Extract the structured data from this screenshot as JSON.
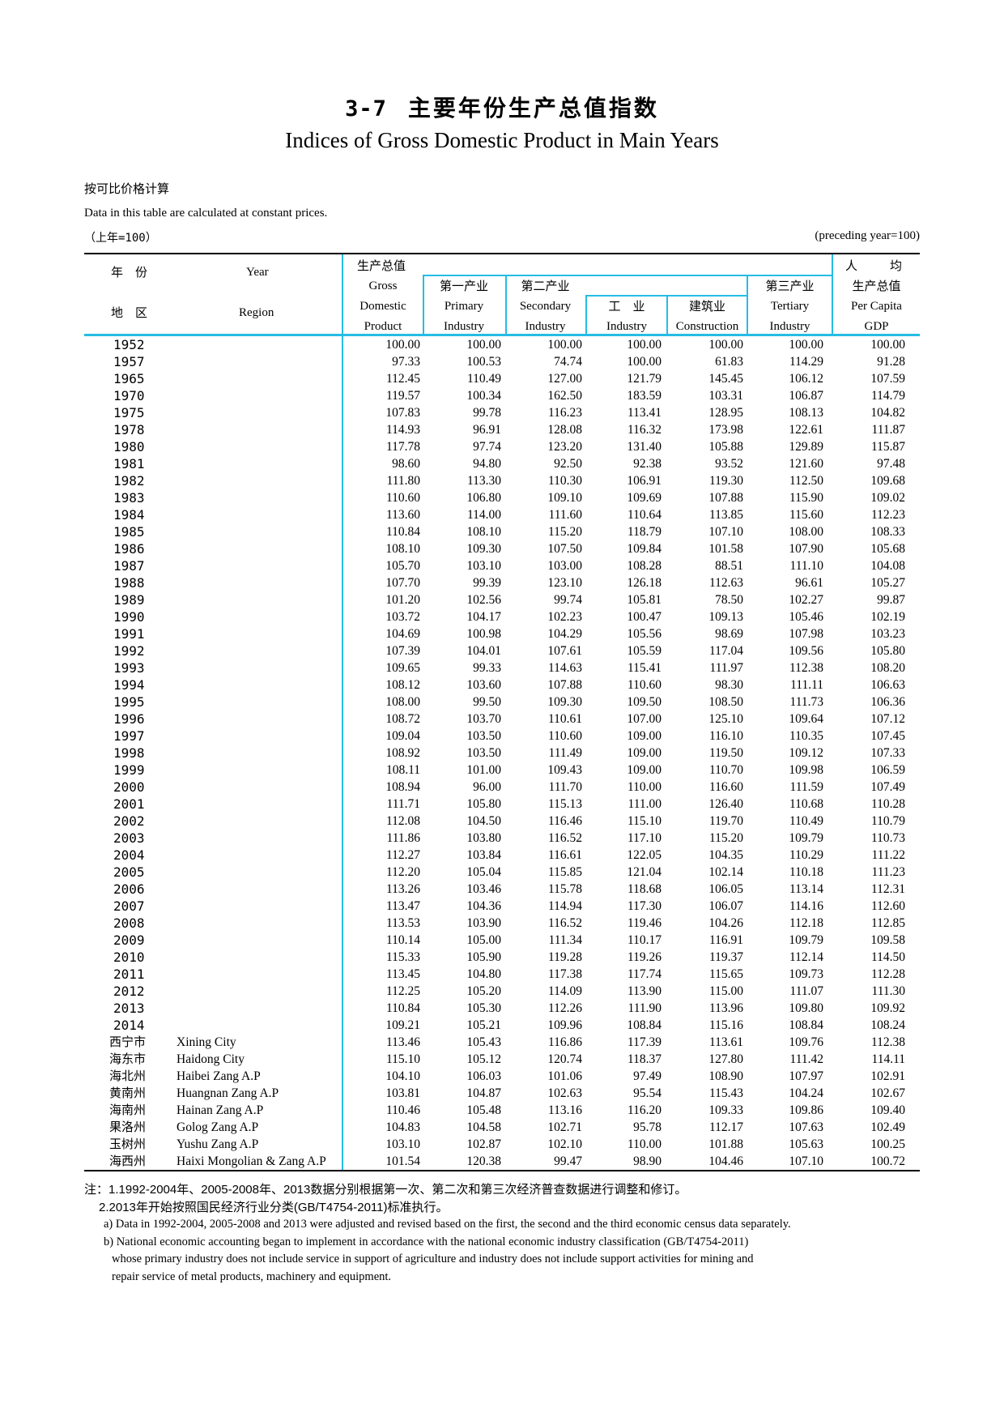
{
  "colors": {
    "accent_cyan": "#25bde4",
    "text": "#000000",
    "background": "#ffffff"
  },
  "page": {
    "title_no": "3-7",
    "title_zh": "主要年份生产总值指数",
    "title_en": "Indices of Gross Domestic Product in Main Years",
    "subtitle_zh": "按可比价格计算",
    "subtitle_en": "Data in this table are calculated at constant prices.",
    "base_left": "（上年=100）",
    "base_right": "(preceding year=100)"
  },
  "table": {
    "header": {
      "year_zh": "年　份",
      "year_en": "Year",
      "region_zh": "地　区",
      "region_en": "Region",
      "gdp_zh": "生产总值",
      "gdp_en1": "Gross",
      "gdp_en2": "Domestic",
      "gdp_en3": "Product",
      "primary_zh": "第一产业",
      "primary_en1": "Primary",
      "primary_en2": "Industry",
      "secondary_zh": "第二产业",
      "secondary_en1": "Secondary",
      "secondary_en2": "Industry",
      "industry_zh": "工　业",
      "industry_en": "Industry",
      "construction_zh": "建筑业",
      "construction_en": "Construction",
      "tertiary_zh": "第三产业",
      "tertiary_en1": "Tertiary",
      "tertiary_en2": "Industry",
      "percapita_zh_a": "人",
      "percapita_zh_b": "均",
      "percapita_zh2": "生产总值",
      "percapita_en1": "Per Capita",
      "percapita_en2": "GDP"
    },
    "rows": [
      {
        "y": "1952",
        "rz": "",
        "re": "",
        "v": [
          "100.00",
          "100.00",
          "100.00",
          "100.00",
          "100.00",
          "100.00",
          "100.00"
        ]
      },
      {
        "y": "1957",
        "rz": "",
        "re": "",
        "v": [
          "97.33",
          "100.53",
          "74.74",
          "100.00",
          "61.83",
          "114.29",
          "91.28"
        ]
      },
      {
        "y": "1965",
        "rz": "",
        "re": "",
        "v": [
          "112.45",
          "110.49",
          "127.00",
          "121.79",
          "145.45",
          "106.12",
          "107.59"
        ]
      },
      {
        "y": "1970",
        "rz": "",
        "re": "",
        "v": [
          "119.57",
          "100.34",
          "162.50",
          "183.59",
          "103.31",
          "106.87",
          "114.79"
        ]
      },
      {
        "y": "1975",
        "rz": "",
        "re": "",
        "v": [
          "107.83",
          "99.78",
          "116.23",
          "113.41",
          "128.95",
          "108.13",
          "104.82"
        ]
      },
      {
        "y": "1978",
        "rz": "",
        "re": "",
        "v": [
          "114.93",
          "96.91",
          "128.08",
          "116.32",
          "173.98",
          "122.61",
          "111.87"
        ]
      },
      {
        "y": "1980",
        "rz": "",
        "re": "",
        "v": [
          "117.78",
          "97.74",
          "123.20",
          "131.40",
          "105.88",
          "129.89",
          "115.87"
        ]
      },
      {
        "y": "1981",
        "rz": "",
        "re": "",
        "v": [
          "98.60",
          "94.80",
          "92.50",
          "92.38",
          "93.52",
          "121.60",
          "97.48"
        ]
      },
      {
        "y": "1982",
        "rz": "",
        "re": "",
        "v": [
          "111.80",
          "113.30",
          "110.30",
          "106.91",
          "119.30",
          "112.50",
          "109.68"
        ]
      },
      {
        "y": "1983",
        "rz": "",
        "re": "",
        "v": [
          "110.60",
          "106.80",
          "109.10",
          "109.69",
          "107.88",
          "115.90",
          "109.02"
        ]
      },
      {
        "y": "1984",
        "rz": "",
        "re": "",
        "v": [
          "113.60",
          "114.00",
          "111.60",
          "110.64",
          "113.85",
          "115.60",
          "112.23"
        ]
      },
      {
        "y": "1985",
        "rz": "",
        "re": "",
        "v": [
          "110.84",
          "108.10",
          "115.20",
          "118.79",
          "107.10",
          "108.00",
          "108.33"
        ]
      },
      {
        "y": "1986",
        "rz": "",
        "re": "",
        "v": [
          "108.10",
          "109.30",
          "107.50",
          "109.84",
          "101.58",
          "107.90",
          "105.68"
        ]
      },
      {
        "y": "1987",
        "rz": "",
        "re": "",
        "v": [
          "105.70",
          "103.10",
          "103.00",
          "108.28",
          "88.51",
          "111.10",
          "104.08"
        ]
      },
      {
        "y": "1988",
        "rz": "",
        "re": "",
        "v": [
          "107.70",
          "99.39",
          "123.10",
          "126.18",
          "112.63",
          "96.61",
          "105.27"
        ]
      },
      {
        "y": "1989",
        "rz": "",
        "re": "",
        "v": [
          "101.20",
          "102.56",
          "99.74",
          "105.81",
          "78.50",
          "102.27",
          "99.87"
        ]
      },
      {
        "y": "1990",
        "rz": "",
        "re": "",
        "v": [
          "103.72",
          "104.17",
          "102.23",
          "100.47",
          "109.13",
          "105.46",
          "102.19"
        ]
      },
      {
        "y": "1991",
        "rz": "",
        "re": "",
        "v": [
          "104.69",
          "100.98",
          "104.29",
          "105.56",
          "98.69",
          "107.98",
          "103.23"
        ]
      },
      {
        "y": "1992",
        "rz": "",
        "re": "",
        "v": [
          "107.39",
          "104.01",
          "107.61",
          "105.59",
          "117.04",
          "109.56",
          "105.80"
        ]
      },
      {
        "y": "1993",
        "rz": "",
        "re": "",
        "v": [
          "109.65",
          "99.33",
          "114.63",
          "115.41",
          "111.97",
          "112.38",
          "108.20"
        ]
      },
      {
        "y": "1994",
        "rz": "",
        "re": "",
        "v": [
          "108.12",
          "103.60",
          "107.88",
          "110.60",
          "98.30",
          "111.11",
          "106.63"
        ]
      },
      {
        "y": "1995",
        "rz": "",
        "re": "",
        "v": [
          "108.00",
          "99.50",
          "109.30",
          "109.50",
          "108.50",
          "111.73",
          "106.36"
        ]
      },
      {
        "y": "1996",
        "rz": "",
        "re": "",
        "v": [
          "108.72",
          "103.70",
          "110.61",
          "107.00",
          "125.10",
          "109.64",
          "107.12"
        ]
      },
      {
        "y": "1997",
        "rz": "",
        "re": "",
        "v": [
          "109.04",
          "103.50",
          "110.60",
          "109.00",
          "116.10",
          "110.35",
          "107.45"
        ]
      },
      {
        "y": "1998",
        "rz": "",
        "re": "",
        "v": [
          "108.92",
          "103.50",
          "111.49",
          "109.00",
          "119.50",
          "109.12",
          "107.33"
        ]
      },
      {
        "y": "1999",
        "rz": "",
        "re": "",
        "v": [
          "108.11",
          "101.00",
          "109.43",
          "109.00",
          "110.70",
          "109.98",
          "106.59"
        ]
      },
      {
        "y": "2000",
        "rz": "",
        "re": "",
        "v": [
          "108.94",
          "96.00",
          "111.70",
          "110.00",
          "116.60",
          "111.59",
          "107.49"
        ]
      },
      {
        "y": "2001",
        "rz": "",
        "re": "",
        "v": [
          "111.71",
          "105.80",
          "115.13",
          "111.00",
          "126.40",
          "110.68",
          "110.28"
        ]
      },
      {
        "y": "2002",
        "rz": "",
        "re": "",
        "v": [
          "112.08",
          "104.50",
          "116.46",
          "115.10",
          "119.70",
          "110.49",
          "110.79"
        ]
      },
      {
        "y": "2003",
        "rz": "",
        "re": "",
        "v": [
          "111.86",
          "103.80",
          "116.52",
          "117.10",
          "115.20",
          "109.79",
          "110.73"
        ]
      },
      {
        "y": "2004",
        "rz": "",
        "re": "",
        "v": [
          "112.27",
          "103.84",
          "116.61",
          "122.05",
          "104.35",
          "110.29",
          "111.22"
        ]
      },
      {
        "y": "2005",
        "rz": "",
        "re": "",
        "v": [
          "112.20",
          "105.04",
          "115.85",
          "121.04",
          "102.14",
          "110.18",
          "111.23"
        ]
      },
      {
        "y": "2006",
        "rz": "",
        "re": "",
        "v": [
          "113.26",
          "103.46",
          "115.78",
          "118.68",
          "106.05",
          "113.14",
          "112.31"
        ]
      },
      {
        "y": "2007",
        "rz": "",
        "re": "",
        "v": [
          "113.47",
          "104.36",
          "114.94",
          "117.30",
          "106.07",
          "114.16",
          "112.60"
        ]
      },
      {
        "y": "2008",
        "rz": "",
        "re": "",
        "v": [
          "113.53",
          "103.90",
          "116.52",
          "119.46",
          "104.26",
          "112.18",
          "112.85"
        ]
      },
      {
        "y": "2009",
        "rz": "",
        "re": "",
        "v": [
          "110.14",
          "105.00",
          "111.34",
          "110.17",
          "116.91",
          "109.79",
          "109.58"
        ]
      },
      {
        "y": "2010",
        "rz": "",
        "re": "",
        "v": [
          "115.33",
          "105.90",
          "119.28",
          "119.26",
          "119.37",
          "112.14",
          "114.50"
        ]
      },
      {
        "y": "2011",
        "rz": "",
        "re": "",
        "v": [
          "113.45",
          "104.80",
          "117.38",
          "117.74",
          "115.65",
          "109.73",
          "112.28"
        ]
      },
      {
        "y": "2012",
        "rz": "",
        "re": "",
        "v": [
          "112.25",
          "105.20",
          "114.09",
          "113.90",
          "115.00",
          "111.07",
          "111.30"
        ]
      },
      {
        "y": "2013",
        "rz": "",
        "re": "",
        "v": [
          "110.84",
          "105.30",
          "112.26",
          "111.90",
          "113.96",
          "109.80",
          "109.92"
        ]
      },
      {
        "y": "2014",
        "rz": "",
        "re": "",
        "v": [
          "109.21",
          "105.21",
          "109.96",
          "108.84",
          "115.16",
          "108.84",
          "108.24"
        ]
      },
      {
        "y": "",
        "rz": "西宁市",
        "re": "Xining City",
        "v": [
          "113.46",
          "105.43",
          "116.86",
          "117.39",
          "113.61",
          "109.76",
          "112.38"
        ]
      },
      {
        "y": "",
        "rz": "海东市",
        "re": "Haidong  City",
        "v": [
          "115.10",
          "105.12",
          "120.74",
          "118.37",
          "127.80",
          "111.42",
          "114.11"
        ]
      },
      {
        "y": "",
        "rz": "海北州",
        "re": "Haibei Zang A.P",
        "v": [
          "104.10",
          "106.03",
          "101.06",
          "97.49",
          "108.90",
          "107.97",
          "102.91"
        ]
      },
      {
        "y": "",
        "rz": "黄南州",
        "re": "Huangnan Zang A.P",
        "v": [
          "103.81",
          "104.87",
          "102.63",
          "95.54",
          "115.43",
          "104.24",
          "102.67"
        ]
      },
      {
        "y": "",
        "rz": "海南州",
        "re": "Hainan Zang A.P",
        "v": [
          "110.46",
          "105.48",
          "113.16",
          "116.20",
          "109.33",
          "109.86",
          "109.40"
        ]
      },
      {
        "y": "",
        "rz": "果洛州",
        "re": "Golog Zang A.P",
        "v": [
          "104.83",
          "104.58",
          "102.71",
          "95.78",
          "112.17",
          "107.63",
          "102.49"
        ]
      },
      {
        "y": "",
        "rz": "玉树州",
        "re": "Yushu Zang A.P",
        "v": [
          "103.10",
          "102.87",
          "102.10",
          "110.00",
          "101.88",
          "105.63",
          "100.25"
        ]
      },
      {
        "y": "",
        "rz": "海西州",
        "re": "Haixi Mongolian & Zang A.P",
        "v": [
          "101.54",
          "120.38",
          "99.47",
          "98.90",
          "104.46",
          "107.10",
          "100.72"
        ]
      }
    ]
  },
  "notes": {
    "zh1": "注：1.1992-2004年、2005-2008年、2013数据分别根据第一次、第二次和第三次经济普查数据进行调整和修订。",
    "zh2": "2.2013年开始按照国民经济行业分类(GB/T4754-2011)标准执行。",
    "en1": "a) Data in 1992-2004, 2005-2008 and 2013 were adjusted and revised based on the first, the second and the third economic census data separately.",
    "en2": "b) National economic accounting began to implement in accordance with the national economic industry classification (GB/T4754-2011)",
    "en3": "whose primary industry does not include service in support of  agriculture and industry does not include support activities for mining and",
    "en4": "repair service of metal products, machinery and equipment."
  }
}
